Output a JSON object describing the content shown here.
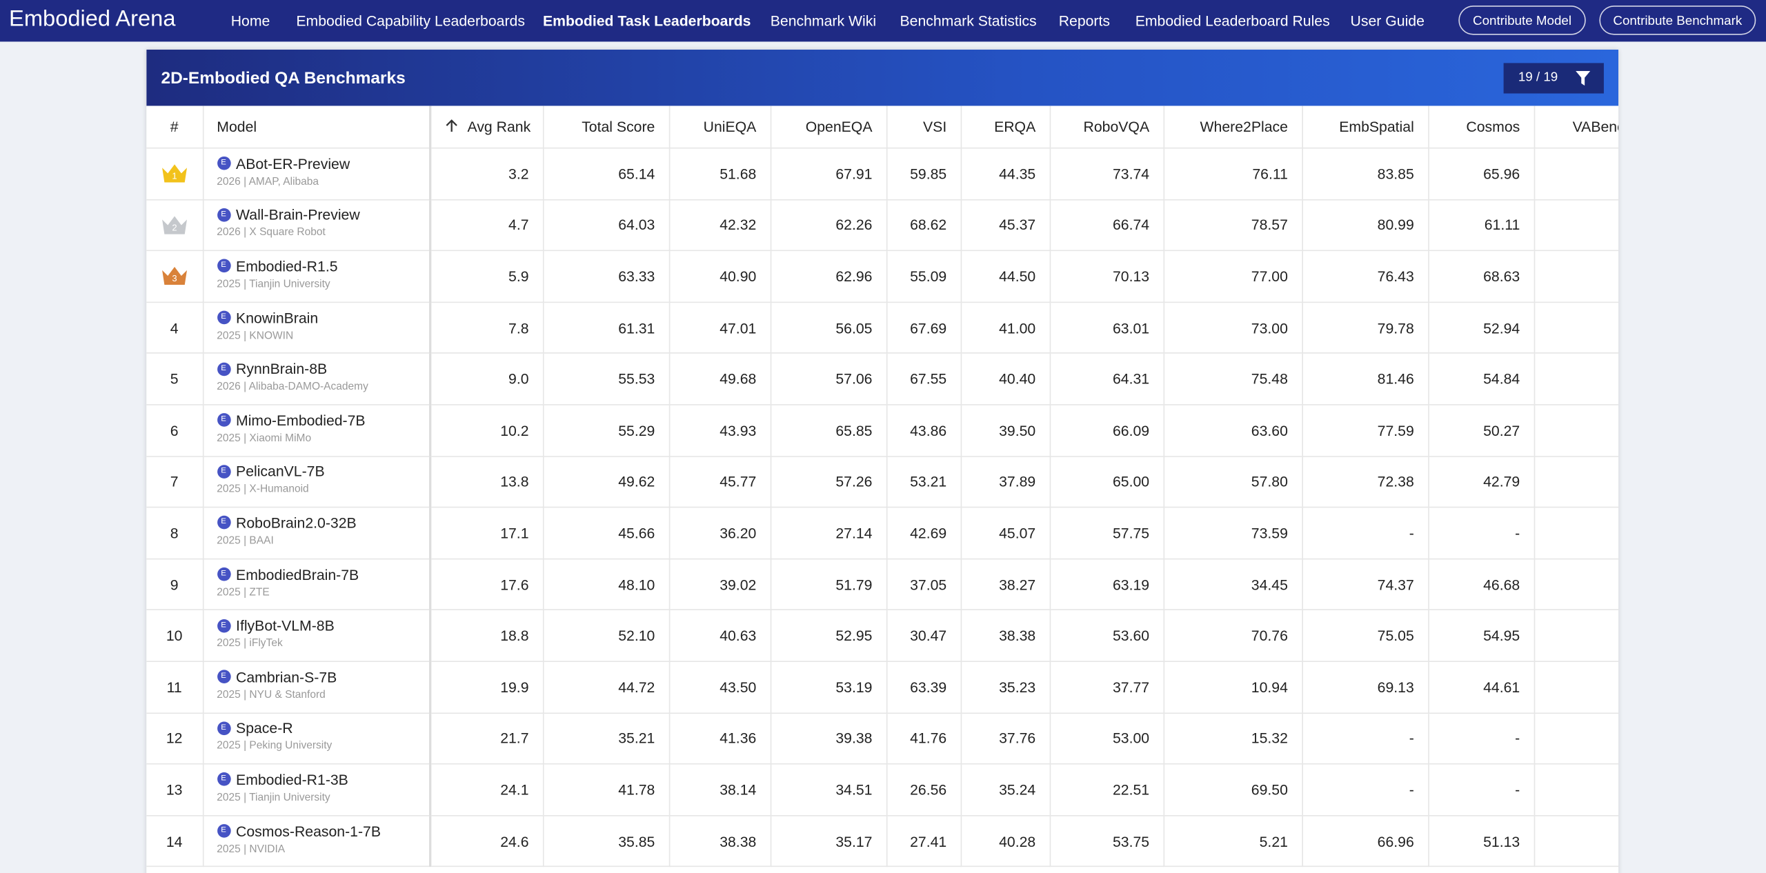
{
  "nav": {
    "brand": "Embodied Arena",
    "links": [
      "Home",
      "Embodied Capability Leaderboards",
      "Embodied Task Leaderboards",
      "Benchmark Wiki",
      "Benchmark Statistics",
      "Reports",
      "Embodied Leaderboard Rules",
      "User Guide"
    ],
    "buttons": [
      "Contribute Model",
      "Contribute Benchmark"
    ]
  },
  "panel": {
    "title": "2D-Embodied QA Benchmarks",
    "filter_count": "19  /  19"
  },
  "table": {
    "columns": [
      "#",
      "Model",
      "Avg Rank",
      "Total Score",
      "UniEQA",
      "OpenEQA",
      "VSI",
      "ERQA",
      "RoboVQA",
      "Where2Place",
      "EmbSpatial",
      "Cosmos",
      "VABench"
    ],
    "model_badge": "E",
    "rows": [
      {
        "rank": "1",
        "model": "ABot-ER-Preview",
        "meta": "2026 | AMAP, Alibaba",
        "values": [
          "3.2",
          "65.14",
          "51.68",
          "67.91",
          "59.85",
          "44.35",
          "73.74",
          "76.11",
          "83.85",
          "65.96"
        ]
      },
      {
        "rank": "2",
        "model": "Wall-Brain-Preview",
        "meta": "2026 | X Square Robot",
        "values": [
          "4.7",
          "64.03",
          "42.32",
          "62.26",
          "68.62",
          "45.37",
          "66.74",
          "78.57",
          "80.99",
          "61.11"
        ]
      },
      {
        "rank": "3",
        "model": "Embodied-R1.5",
        "meta": "2025 | Tianjin University",
        "values": [
          "5.9",
          "63.33",
          "40.90",
          "62.96",
          "55.09",
          "44.50",
          "70.13",
          "77.00",
          "76.43",
          "68.63"
        ]
      },
      {
        "rank": "4",
        "model": "KnowinBrain",
        "meta": "2025 | KNOWIN",
        "values": [
          "7.8",
          "61.31",
          "47.01",
          "56.05",
          "67.69",
          "41.00",
          "63.01",
          "73.00",
          "79.78",
          "52.94"
        ]
      },
      {
        "rank": "5",
        "model": "RynnBrain-8B",
        "meta": "2026 | Alibaba-DAMO-Academy",
        "values": [
          "9.0",
          "55.53",
          "49.68",
          "57.06",
          "67.55",
          "40.40",
          "64.31",
          "75.48",
          "81.46",
          "54.84"
        ]
      },
      {
        "rank": "6",
        "model": "Mimo-Embodied-7B",
        "meta": "2025 | Xiaomi MiMo",
        "values": [
          "10.2",
          "55.29",
          "43.93",
          "65.85",
          "43.86",
          "39.50",
          "66.09",
          "63.60",
          "77.59",
          "50.27"
        ]
      },
      {
        "rank": "7",
        "model": "PelicanVL-7B",
        "meta": "2025 | X-Humanoid",
        "values": [
          "13.8",
          "49.62",
          "45.77",
          "57.26",
          "53.21",
          "37.89",
          "65.00",
          "57.80",
          "72.38",
          "42.79"
        ]
      },
      {
        "rank": "8",
        "model": "RoboBrain2.0-32B",
        "meta": "2025 | BAAI",
        "values": [
          "17.1",
          "45.66",
          "36.20",
          "27.14",
          "42.69",
          "45.07",
          "57.75",
          "73.59",
          "-",
          "-"
        ]
      },
      {
        "rank": "9",
        "model": "EmbodiedBrain-7B",
        "meta": "2025 | ZTE",
        "values": [
          "17.6",
          "48.10",
          "39.02",
          "51.79",
          "37.05",
          "38.27",
          "63.19",
          "34.45",
          "74.37",
          "46.68"
        ]
      },
      {
        "rank": "10",
        "model": "IflyBot-VLM-8B",
        "meta": "2025 | iFlyTek",
        "values": [
          "18.8",
          "52.10",
          "40.63",
          "52.95",
          "30.47",
          "38.38",
          "53.60",
          "70.76",
          "75.05",
          "54.95"
        ]
      },
      {
        "rank": "11",
        "model": "Cambrian-S-7B",
        "meta": "2025 | NYU & Stanford",
        "values": [
          "19.9",
          "44.72",
          "43.50",
          "53.19",
          "63.39",
          "35.23",
          "37.77",
          "10.94",
          "69.13",
          "44.61"
        ]
      },
      {
        "rank": "12",
        "model": "Space-R",
        "meta": "2025 | Peking University",
        "values": [
          "21.7",
          "35.21",
          "41.36",
          "39.38",
          "41.76",
          "37.76",
          "53.00",
          "15.32",
          "-",
          "-"
        ]
      },
      {
        "rank": "13",
        "model": "Embodied-R1-3B",
        "meta": "2025 | Tianjin University",
        "values": [
          "24.1",
          "41.78",
          "38.14",
          "34.51",
          "26.56",
          "35.24",
          "22.51",
          "69.50",
          "-",
          "-"
        ]
      },
      {
        "rank": "14",
        "model": "Cosmos-Reason-1-7B",
        "meta": "2025 | NVIDIA",
        "values": [
          "24.6",
          "35.85",
          "38.38",
          "35.17",
          "27.41",
          "40.28",
          "53.75",
          "5.21",
          "66.96",
          "51.13"
        ]
      }
    ]
  }
}
